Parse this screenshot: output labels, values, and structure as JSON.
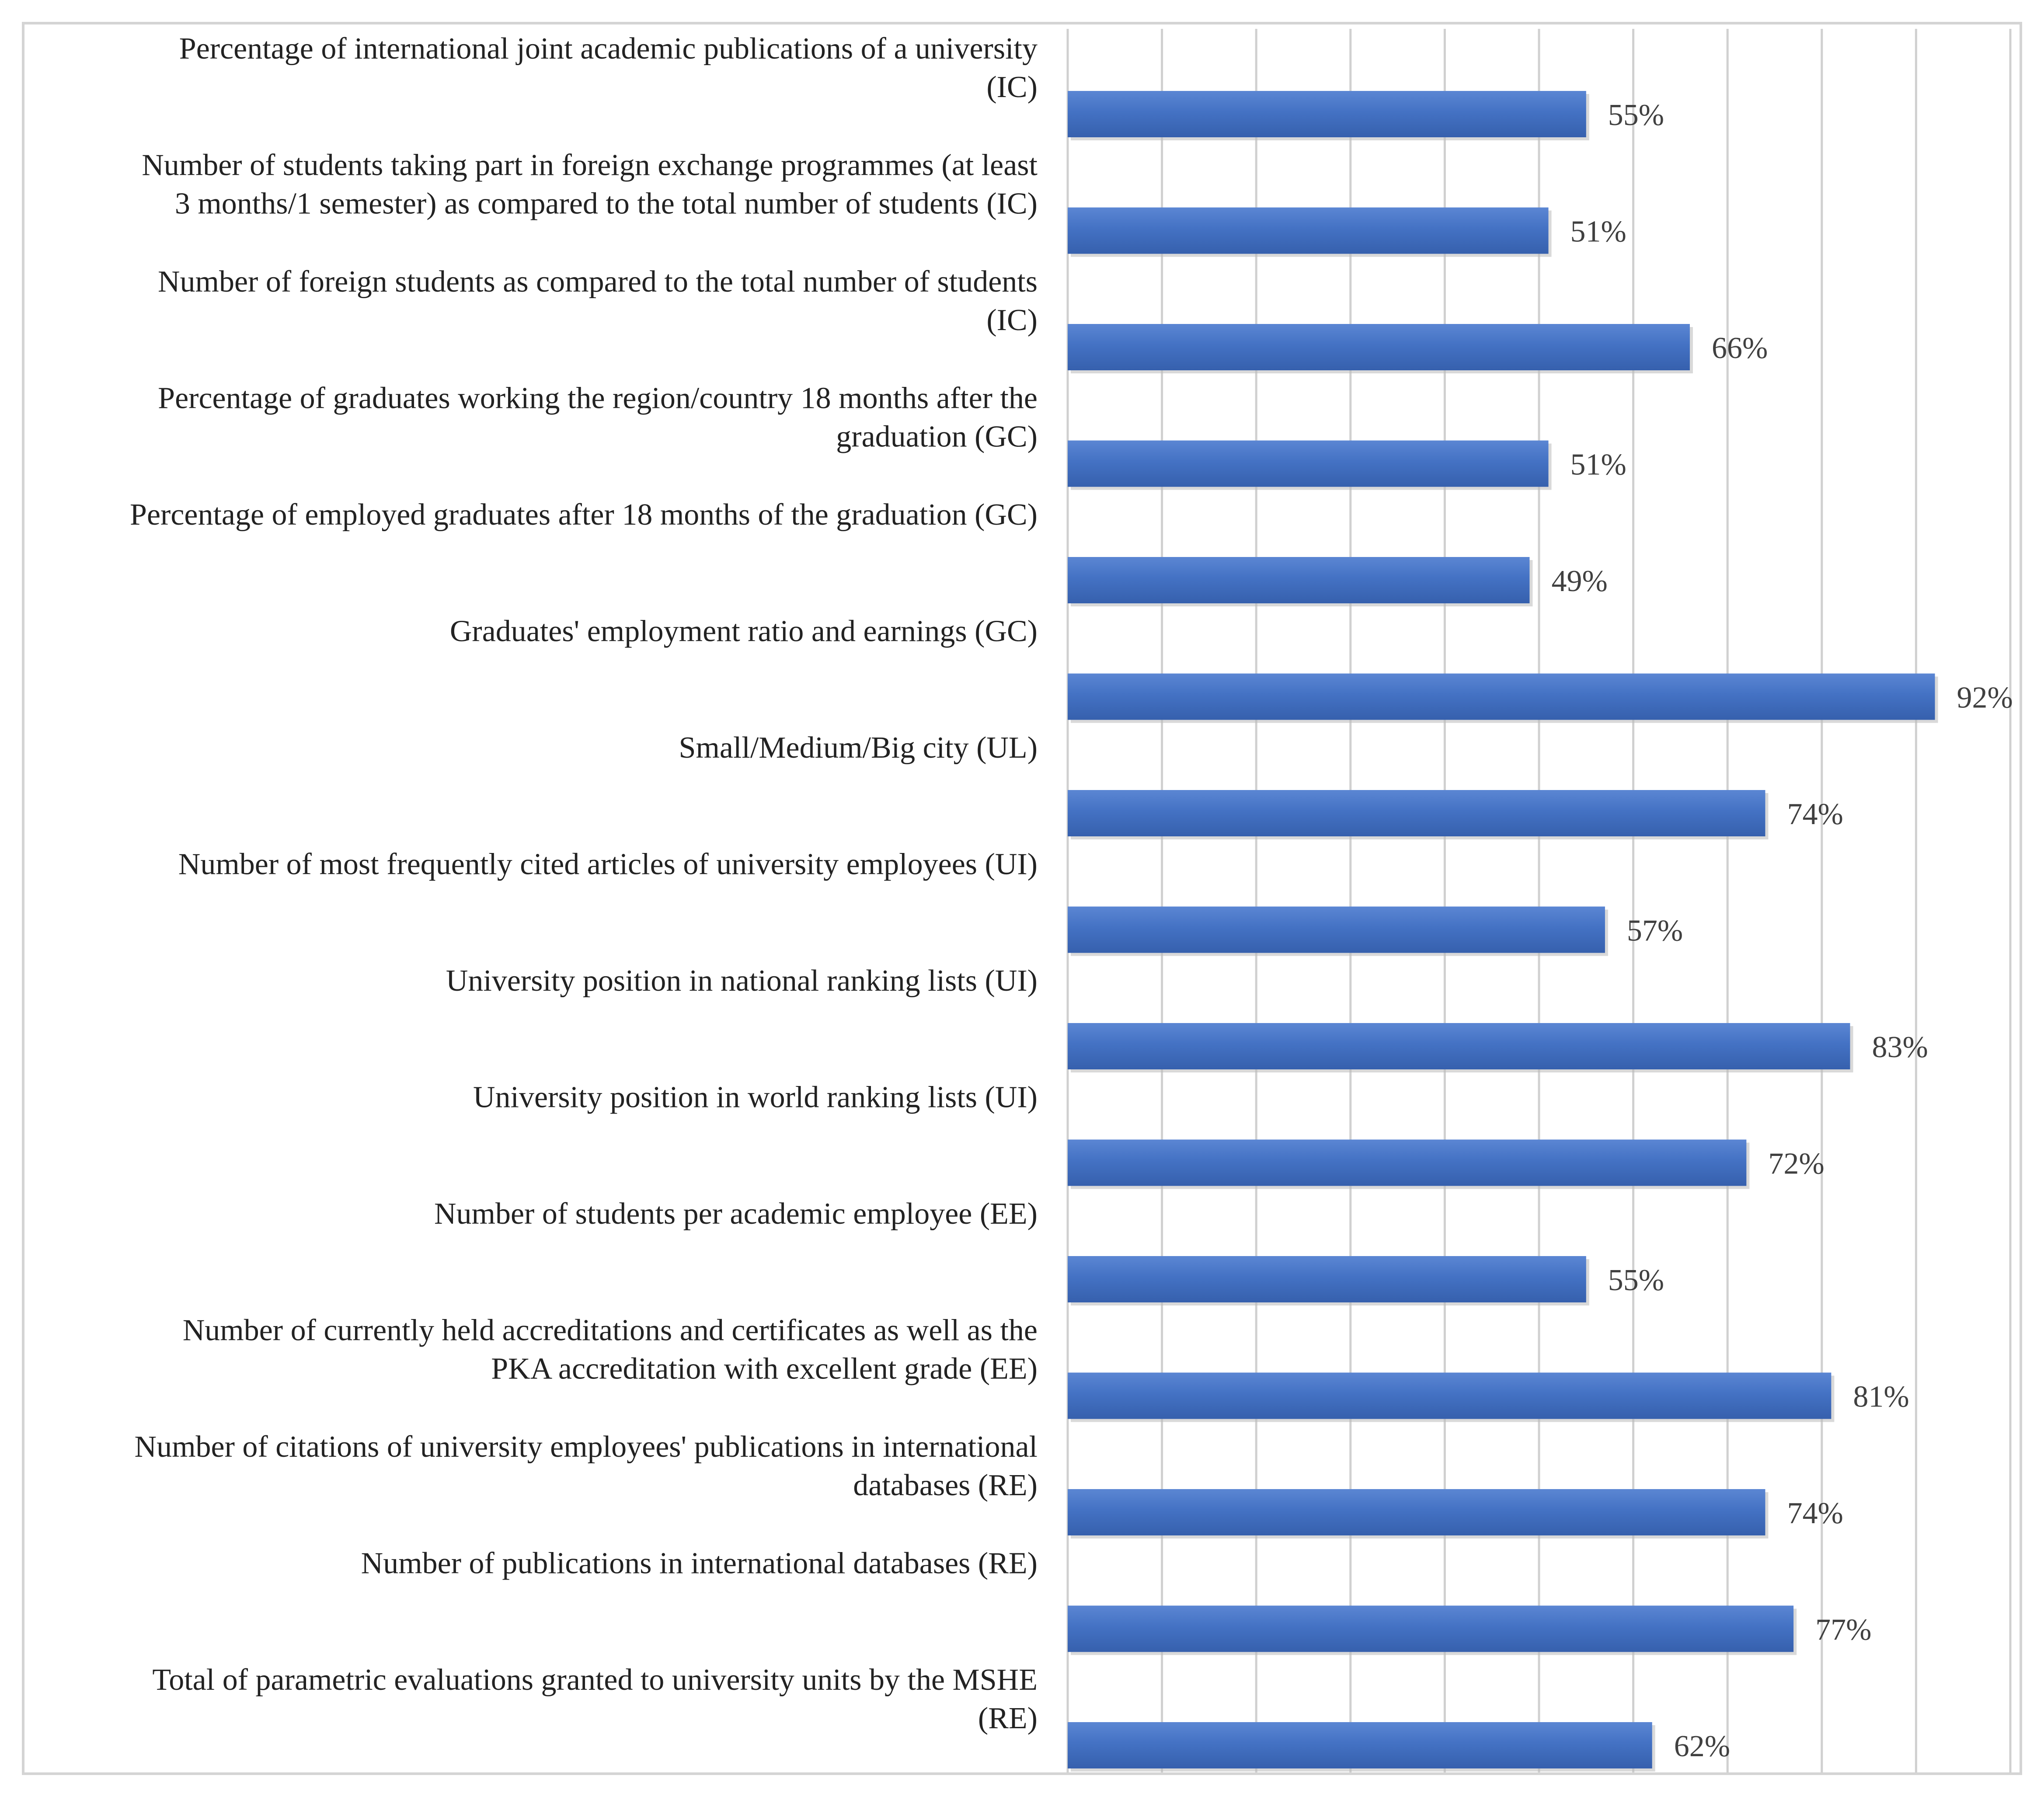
{
  "chart_data": {
    "type": "bar",
    "orientation": "horizontal",
    "title": "",
    "xlabel": "",
    "ylabel": "",
    "xlim": [
      0,
      100
    ],
    "grid": "vertical",
    "value_suffix": "%",
    "bar_color": "#4472c4",
    "categories": [
      [
        "Percentage of international joint academic publications of a university",
        "(IC)"
      ],
      [
        "Number of students taking part in foreign exchange programmes (at least",
        "3 months/1 semester) as compared to the total number of students (IC)"
      ],
      [
        "Number of  foreign students as compared to the total number of students",
        "(IC)"
      ],
      [
        "Percentage of graduates working the region/country 18 months after the",
        "graduation (GC)"
      ],
      [
        "Percentage of employed graduates after 18 months of the graduation (GC)"
      ],
      [
        "Graduates' employment ratio and earnings (GC)"
      ],
      [
        "Small/Medium/Big city (UL)"
      ],
      [
        "Number of most frequently cited articles of university employees (UI)"
      ],
      [
        "University position in national ranking lists (UI)"
      ],
      [
        "University position in world ranking lists (UI)"
      ],
      [
        "Number of students per academic employee (EE)"
      ],
      [
        "Number of currently held accreditations and certificates as well as the",
        "PKA accreditation with excellent grade (EE)"
      ],
      [
        "Number of citations of university employees' publications in international",
        "databases (RE)"
      ],
      [
        "Number of publications in international databases (RE)"
      ],
      [
        "Total of parametric evaluations granted to university units by the MSHE",
        "(RE)"
      ]
    ],
    "values": [
      55,
      51,
      66,
      51,
      49,
      92,
      74,
      57,
      83,
      72,
      55,
      81,
      74,
      77,
      62
    ],
    "value_labels": [
      "55%",
      "51%",
      "66%",
      "51%",
      "49%",
      "92%",
      "74%",
      "57%",
      "83%",
      "72%",
      "55%",
      "81%",
      "74%",
      "77%",
      "62%"
    ]
  }
}
